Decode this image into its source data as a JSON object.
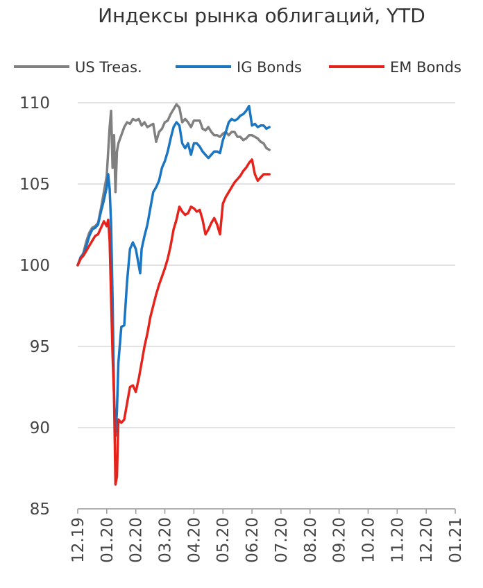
{
  "chart_data": {
    "type": "line",
    "title": "Индексы рынка облигаций, YTD",
    "xlabel": "",
    "ylabel": "",
    "ylim": [
      85,
      110
    ],
    "yticks": [
      85,
      90,
      95,
      100,
      105,
      110
    ],
    "xticks": [
      "12.19",
      "01.20",
      "02.20",
      "03.20",
      "04.20",
      "05.20",
      "06.20",
      "07.20",
      "08.20",
      "09.20",
      "10.20",
      "11.20",
      "12.20",
      "01.21"
    ],
    "grid": true,
    "legend_position": "top",
    "series": [
      {
        "name": "US Treas.",
        "color": "#808080",
        "points": [
          [
            0,
            100
          ],
          [
            0.1,
            100.4
          ],
          [
            0.2,
            100.8
          ],
          [
            0.3,
            101.5
          ],
          [
            0.4,
            102
          ],
          [
            0.5,
            102.3
          ],
          [
            0.6,
            102.4
          ],
          [
            0.7,
            102.6
          ],
          [
            0.8,
            103.5
          ],
          [
            0.9,
            104.5
          ],
          [
            1.0,
            105.5
          ],
          [
            1.05,
            107
          ],
          [
            1.1,
            108.5
          ],
          [
            1.15,
            109.5
          ],
          [
            1.2,
            106
          ],
          [
            1.25,
            108
          ],
          [
            1.3,
            104.5
          ],
          [
            1.35,
            107
          ],
          [
            1.4,
            107.5
          ],
          [
            1.5,
            108
          ],
          [
            1.6,
            108.5
          ],
          [
            1.7,
            108.8
          ],
          [
            1.8,
            108.7
          ],
          [
            1.9,
            109
          ],
          [
            2.0,
            108.9
          ],
          [
            2.1,
            109
          ],
          [
            2.2,
            108.6
          ],
          [
            2.3,
            108.8
          ],
          [
            2.4,
            108.5
          ],
          [
            2.6,
            108.7
          ],
          [
            2.7,
            107.6
          ],
          [
            2.8,
            108.2
          ],
          [
            2.9,
            108.4
          ],
          [
            3.0,
            108.8
          ],
          [
            3.1,
            108.9
          ],
          [
            3.2,
            109.3
          ],
          [
            3.3,
            109.6
          ],
          [
            3.4,
            109.9
          ],
          [
            3.5,
            109.7
          ],
          [
            3.6,
            108.8
          ],
          [
            3.7,
            109
          ],
          [
            3.8,
            108.8
          ],
          [
            3.9,
            108.5
          ],
          [
            4.0,
            108.9
          ],
          [
            4.1,
            108.9
          ],
          [
            4.2,
            108.9
          ],
          [
            4.3,
            108.4
          ],
          [
            4.4,
            108.3
          ],
          [
            4.5,
            108.5
          ],
          [
            4.6,
            108.2
          ],
          [
            4.7,
            108
          ],
          [
            4.8,
            108
          ],
          [
            4.9,
            107.9
          ],
          [
            5.0,
            108.1
          ],
          [
            5.1,
            108.2
          ],
          [
            5.2,
            108
          ],
          [
            5.3,
            108.2
          ],
          [
            5.4,
            108.2
          ],
          [
            5.5,
            107.9
          ],
          [
            5.6,
            107.9
          ],
          [
            5.7,
            107.7
          ],
          [
            5.8,
            107.8
          ],
          [
            5.9,
            108
          ],
          [
            6.0,
            108
          ],
          [
            6.1,
            107.9
          ],
          [
            6.2,
            107.8
          ],
          [
            6.3,
            107.6
          ],
          [
            6.4,
            107.5
          ],
          [
            6.5,
            107.2
          ],
          [
            6.6,
            107.1
          ]
        ]
      },
      {
        "name": "IG Bonds",
        "color": "#1a75c2",
        "points": [
          [
            0,
            100
          ],
          [
            0.1,
            100.5
          ],
          [
            0.2,
            100.7
          ],
          [
            0.3,
            101.2
          ],
          [
            0.4,
            101.8
          ],
          [
            0.5,
            102.2
          ],
          [
            0.6,
            102.3
          ],
          [
            0.7,
            102.5
          ],
          [
            0.8,
            103.3
          ],
          [
            0.9,
            104
          ],
          [
            1.0,
            104.8
          ],
          [
            1.05,
            105.6
          ],
          [
            1.1,
            104.7
          ],
          [
            1.15,
            102.5
          ],
          [
            1.2,
            98
          ],
          [
            1.25,
            92
          ],
          [
            1.3,
            89.5
          ],
          [
            1.35,
            91
          ],
          [
            1.4,
            94
          ],
          [
            1.5,
            96.2
          ],
          [
            1.6,
            96.3
          ],
          [
            1.7,
            99
          ],
          [
            1.8,
            101
          ],
          [
            1.9,
            101.4
          ],
          [
            2.0,
            101
          ],
          [
            2.1,
            100
          ],
          [
            2.15,
            99.5
          ],
          [
            2.2,
            101
          ],
          [
            2.3,
            101.8
          ],
          [
            2.4,
            102.5
          ],
          [
            2.5,
            103.5
          ],
          [
            2.6,
            104.5
          ],
          [
            2.7,
            104.8
          ],
          [
            2.8,
            105.2
          ],
          [
            2.9,
            106
          ],
          [
            3.0,
            106.4
          ],
          [
            3.1,
            107
          ],
          [
            3.2,
            107.8
          ],
          [
            3.3,
            108.5
          ],
          [
            3.4,
            108.8
          ],
          [
            3.5,
            108.6
          ],
          [
            3.6,
            107.5
          ],
          [
            3.7,
            107.2
          ],
          [
            3.8,
            107.5
          ],
          [
            3.9,
            106.8
          ],
          [
            4.0,
            107.5
          ],
          [
            4.1,
            107.5
          ],
          [
            4.2,
            107.3
          ],
          [
            4.3,
            107
          ],
          [
            4.4,
            106.8
          ],
          [
            4.5,
            106.6
          ],
          [
            4.6,
            106.8
          ],
          [
            4.7,
            107
          ],
          [
            4.8,
            107
          ],
          [
            4.9,
            106.9
          ],
          [
            5.0,
            107.7
          ],
          [
            5.1,
            108.2
          ],
          [
            5.2,
            108.8
          ],
          [
            5.3,
            109
          ],
          [
            5.4,
            108.9
          ],
          [
            5.5,
            109
          ],
          [
            5.6,
            109.2
          ],
          [
            5.7,
            109.3
          ],
          [
            5.8,
            109.5
          ],
          [
            5.9,
            109.8
          ],
          [
            6.0,
            108.6
          ],
          [
            6.1,
            108.7
          ],
          [
            6.2,
            108.5
          ],
          [
            6.3,
            108.6
          ],
          [
            6.4,
            108.6
          ],
          [
            6.5,
            108.4
          ],
          [
            6.6,
            108.5
          ]
        ]
      },
      {
        "name": "EM Bonds",
        "color": "#e5231b",
        "points": [
          [
            0,
            100
          ],
          [
            0.1,
            100.4
          ],
          [
            0.2,
            100.6
          ],
          [
            0.3,
            100.9
          ],
          [
            0.4,
            101.2
          ],
          [
            0.5,
            101.5
          ],
          [
            0.6,
            101.8
          ],
          [
            0.7,
            101.9
          ],
          [
            0.8,
            102.3
          ],
          [
            0.9,
            102.7
          ],
          [
            1.0,
            102.4
          ],
          [
            1.05,
            102.8
          ],
          [
            1.1,
            101.5
          ],
          [
            1.15,
            98
          ],
          [
            1.2,
            94.5
          ],
          [
            1.25,
            92
          ],
          [
            1.3,
            86.5
          ],
          [
            1.35,
            87
          ],
          [
            1.4,
            90.5
          ],
          [
            1.5,
            90.3
          ],
          [
            1.6,
            90.5
          ],
          [
            1.7,
            91.5
          ],
          [
            1.8,
            92.5
          ],
          [
            1.9,
            92.6
          ],
          [
            2.0,
            92.2
          ],
          [
            2.1,
            93
          ],
          [
            2.2,
            94
          ],
          [
            2.3,
            95
          ],
          [
            2.4,
            95.8
          ],
          [
            2.5,
            96.8
          ],
          [
            2.6,
            97.5
          ],
          [
            2.7,
            98.2
          ],
          [
            2.8,
            98.8
          ],
          [
            2.9,
            99.3
          ],
          [
            3.0,
            99.8
          ],
          [
            3.1,
            100.4
          ],
          [
            3.2,
            101.2
          ],
          [
            3.3,
            102.2
          ],
          [
            3.4,
            102.8
          ],
          [
            3.5,
            103.6
          ],
          [
            3.6,
            103.3
          ],
          [
            3.7,
            103.1
          ],
          [
            3.8,
            103.2
          ],
          [
            3.9,
            103.6
          ],
          [
            4.0,
            103.5
          ],
          [
            4.1,
            103.3
          ],
          [
            4.2,
            103.4
          ],
          [
            4.3,
            102.8
          ],
          [
            4.4,
            101.9
          ],
          [
            4.5,
            102.2
          ],
          [
            4.6,
            102.6
          ],
          [
            4.7,
            102.9
          ],
          [
            4.8,
            102.5
          ],
          [
            4.9,
            101.9
          ],
          [
            5.0,
            103.8
          ],
          [
            5.1,
            104.2
          ],
          [
            5.2,
            104.5
          ],
          [
            5.3,
            104.8
          ],
          [
            5.4,
            105.1
          ],
          [
            5.5,
            105.3
          ],
          [
            5.6,
            105.5
          ],
          [
            5.7,
            105.8
          ],
          [
            5.8,
            106
          ],
          [
            5.9,
            106.3
          ],
          [
            6.0,
            106.5
          ],
          [
            6.1,
            105.6
          ],
          [
            6.2,
            105.2
          ],
          [
            6.3,
            105.4
          ],
          [
            6.4,
            105.6
          ],
          [
            6.5,
            105.6
          ],
          [
            6.6,
            105.6
          ]
        ]
      }
    ]
  }
}
